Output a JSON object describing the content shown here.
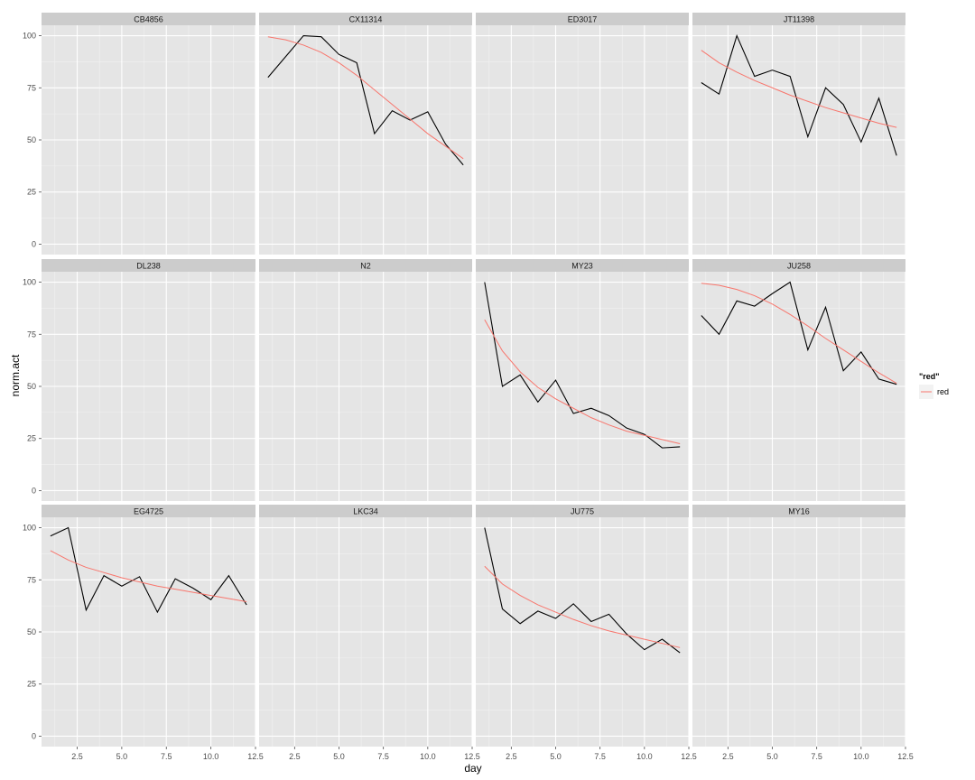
{
  "chart_data": {
    "type": "line",
    "xlabel": "day",
    "ylabel": "norm.act",
    "xlim": [
      0.5,
      12.5
    ],
    "ylim": [
      -5,
      105
    ],
    "x_ticks": [
      2.5,
      5.0,
      7.5,
      10.0,
      12.5
    ],
    "x_tick_labels": [
      "2.5",
      "5.0",
      "7.5",
      "10.0",
      "12.5"
    ],
    "y_ticks": [
      0,
      25,
      50,
      75,
      100
    ],
    "y_tick_labels": [
      "0",
      "25",
      "50",
      "75",
      "100"
    ],
    "grid": true,
    "legend": {
      "title": "\"red\"",
      "placement": "right",
      "entries": [
        {
          "label": "red",
          "color": "#F8766D"
        }
      ]
    },
    "colors": {
      "observed": "#000000",
      "fit": "#F8766D",
      "panel_bg": "#E5E5E5",
      "strip_bg": "#CCCCCC",
      "grid": "#FFFFFF"
    },
    "panels": [
      {
        "title": "CB4856",
        "observed": [],
        "fit": []
      },
      {
        "title": "CX11314",
        "observed": [
          [
            1,
            80
          ],
          [
            2,
            90
          ],
          [
            3,
            100
          ],
          [
            4,
            99.5
          ],
          [
            5,
            91
          ],
          [
            6,
            87
          ],
          [
            7,
            53
          ],
          [
            8,
            64
          ],
          [
            9,
            59.5
          ],
          [
            10,
            63.5
          ],
          [
            11,
            48
          ],
          [
            12,
            38
          ]
        ],
        "fit": [
          [
            1,
            99.5
          ],
          [
            2,
            98
          ],
          [
            3,
            95.5
          ],
          [
            4,
            92
          ],
          [
            5,
            87
          ],
          [
            6,
            81
          ],
          [
            7,
            74
          ],
          [
            8,
            67
          ],
          [
            9,
            60
          ],
          [
            10,
            53
          ],
          [
            11,
            47
          ],
          [
            12,
            41
          ]
        ]
      },
      {
        "title": "ED3017",
        "observed": [],
        "fit": []
      },
      {
        "title": "JT11398",
        "observed": [
          [
            1,
            77.5
          ],
          [
            2,
            72
          ],
          [
            3,
            100
          ],
          [
            4,
            80.5
          ],
          [
            5,
            83.5
          ],
          [
            6,
            80.5
          ],
          [
            7,
            51.5
          ],
          [
            8,
            75
          ],
          [
            9,
            67
          ],
          [
            10,
            49
          ],
          [
            11,
            70
          ],
          [
            12,
            42.5
          ]
        ],
        "fit": [
          [
            1,
            93
          ],
          [
            2,
            87
          ],
          [
            3,
            82.5
          ],
          [
            4,
            78.5
          ],
          [
            5,
            75
          ],
          [
            6,
            71.5
          ],
          [
            7,
            68.5
          ],
          [
            8,
            65.5
          ],
          [
            9,
            63
          ],
          [
            10,
            60.5
          ],
          [
            11,
            58
          ],
          [
            12,
            56
          ]
        ]
      },
      {
        "title": "DL238",
        "observed": [],
        "fit": []
      },
      {
        "title": "N2",
        "observed": [],
        "fit": []
      },
      {
        "title": "MY23",
        "observed": [
          [
            1,
            100
          ],
          [
            2,
            50
          ],
          [
            3,
            55.5
          ],
          [
            4,
            42.5
          ],
          [
            5,
            53
          ],
          [
            6,
            37
          ],
          [
            7,
            39.5
          ],
          [
            8,
            36
          ],
          [
            9,
            30
          ],
          [
            10,
            27
          ],
          [
            11,
            20.5
          ],
          [
            12,
            21
          ]
        ],
        "fit": [
          [
            1,
            82
          ],
          [
            2,
            67
          ],
          [
            3,
            57
          ],
          [
            4,
            49.5
          ],
          [
            5,
            44
          ],
          [
            6,
            39.5
          ],
          [
            7,
            35
          ],
          [
            8,
            31.5
          ],
          [
            9,
            28.5
          ],
          [
            10,
            26.5
          ],
          [
            11,
            24.5
          ],
          [
            12,
            22.5
          ]
        ]
      },
      {
        "title": "JU258",
        "observed": [
          [
            1,
            84
          ],
          [
            2,
            75
          ],
          [
            3,
            91
          ],
          [
            4,
            88.5
          ],
          [
            5,
            94.5
          ],
          [
            6,
            100
          ],
          [
            7,
            67.5
          ],
          [
            8,
            88
          ],
          [
            9,
            57.5
          ],
          [
            10,
            66.5
          ],
          [
            11,
            53.5
          ],
          [
            12,
            51
          ]
        ],
        "fit": [
          [
            1,
            99.5
          ],
          [
            2,
            98.5
          ],
          [
            3,
            96.5
          ],
          [
            4,
            93.5
          ],
          [
            5,
            89.5
          ],
          [
            6,
            84.5
          ],
          [
            7,
            79
          ],
          [
            8,
            73
          ],
          [
            9,
            67.5
          ],
          [
            10,
            62
          ],
          [
            11,
            56.5
          ],
          [
            12,
            51.5
          ]
        ]
      },
      {
        "title": "EG4725",
        "observed": [
          [
            1,
            96
          ],
          [
            2,
            100
          ],
          [
            3,
            60.5
          ],
          [
            4,
            77
          ],
          [
            5,
            72
          ],
          [
            6,
            76.5
          ],
          [
            7,
            59.5
          ],
          [
            8,
            75.5
          ],
          [
            9,
            71
          ],
          [
            10,
            65.5
          ],
          [
            11,
            77
          ],
          [
            12,
            63
          ]
        ],
        "fit": [
          [
            1,
            89
          ],
          [
            2,
            84.5
          ],
          [
            3,
            81
          ],
          [
            4,
            78.5
          ],
          [
            5,
            76
          ],
          [
            6,
            74
          ],
          [
            7,
            72
          ],
          [
            8,
            70.5
          ],
          [
            9,
            69
          ],
          [
            10,
            67.5
          ],
          [
            11,
            66
          ],
          [
            12,
            64.5
          ]
        ]
      },
      {
        "title": "LKC34",
        "observed": [],
        "fit": []
      },
      {
        "title": "JU775",
        "observed": [
          [
            1,
            100
          ],
          [
            2,
            61
          ],
          [
            3,
            54
          ],
          [
            4,
            60
          ],
          [
            5,
            56.5
          ],
          [
            6,
            63.5
          ],
          [
            7,
            55
          ],
          [
            8,
            58.5
          ],
          [
            9,
            49
          ],
          [
            10,
            41.5
          ],
          [
            11,
            46.5
          ],
          [
            12,
            40
          ]
        ],
        "fit": [
          [
            1,
            81.5
          ],
          [
            2,
            73
          ],
          [
            3,
            67.5
          ],
          [
            4,
            63
          ],
          [
            5,
            59.5
          ],
          [
            6,
            56
          ],
          [
            7,
            53
          ],
          [
            8,
            50.5
          ],
          [
            9,
            48.5
          ],
          [
            10,
            46.5
          ],
          [
            11,
            44.5
          ],
          [
            12,
            42.5
          ]
        ]
      },
      {
        "title": "MY16",
        "observed": [],
        "fit": []
      }
    ]
  }
}
